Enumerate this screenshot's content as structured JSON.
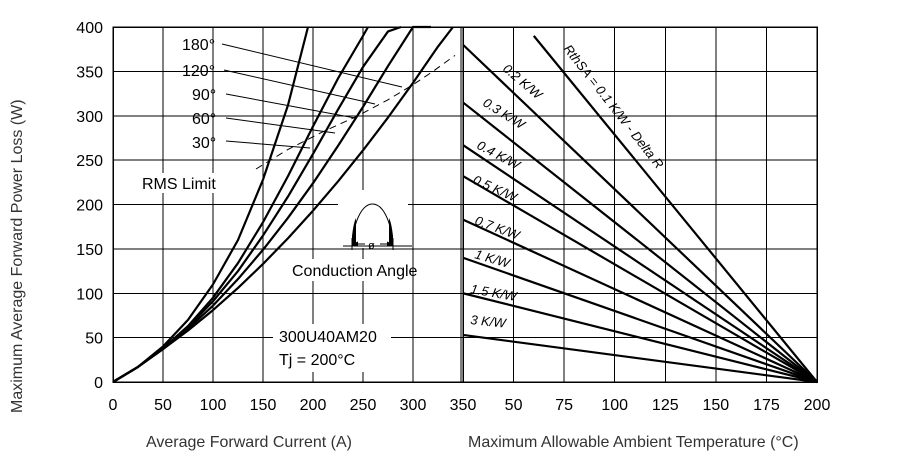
{
  "chart_data": [
    {
      "type": "line",
      "title": "",
      "xlabel": "Average Forward Current (A)",
      "ylabel": "Maximum Average Forward Power Loss (W)",
      "xlim": [
        0,
        350
      ],
      "ylim": [
        0,
        400
      ],
      "xticks": [
        "0",
        "50",
        "100",
        "150",
        "200",
        "250",
        "300"
      ],
      "yticks": [
        "0",
        "50",
        "100",
        "150",
        "200",
        "250",
        "300",
        "350",
        "400"
      ],
      "grid": true,
      "series": [
        {
          "name": "30°",
          "x": [
            0,
            25,
            50,
            75,
            100,
            125,
            150,
            175,
            200,
            225,
            250,
            275,
            300,
            325,
            340
          ],
          "y": [
            0,
            17,
            37,
            58,
            81,
            106,
            133,
            162,
            193,
            226,
            261,
            298,
            337,
            378,
            400
          ]
        },
        {
          "name": "60°",
          "x": [
            0,
            25,
            50,
            75,
            100,
            125,
            150,
            175,
            200,
            225,
            250,
            275,
            300,
            318
          ],
          "y": [
            0,
            17,
            37,
            60,
            86,
            116,
            149,
            185,
            224,
            266,
            310,
            356,
            402,
            400
          ]
        },
        {
          "name": "90°",
          "x": [
            0,
            25,
            50,
            75,
            100,
            125,
            150,
            175,
            200,
            225,
            250,
            275,
            288
          ],
          "y": [
            0,
            17,
            38,
            62,
            91,
            125,
            165,
            209,
            257,
            307,
            355,
            395,
            400
          ]
        },
        {
          "name": "120°",
          "x": [
            0,
            25,
            50,
            75,
            100,
            125,
            150,
            175,
            200,
            225,
            250,
            255
          ],
          "y": [
            0,
            17,
            38,
            63,
            95,
            134,
            180,
            232,
            288,
            342,
            390,
            400
          ]
        },
        {
          "name": "180°",
          "x": [
            0,
            25,
            50,
            75,
            100,
            125,
            150,
            175,
            195
          ],
          "y": [
            0,
            17,
            40,
            70,
            110,
            160,
            228,
            312,
            400
          ]
        }
      ],
      "rms_limit": {
        "label": "RMS Limit",
        "x": [
          143,
          175,
          210,
          245,
          275,
          300,
          320,
          342
        ],
        "y": [
          240,
          262,
          282,
          300,
          318,
          335,
          350,
          368
        ]
      },
      "annotations": [
        "RMS Limit",
        "Conduction Angle",
        "ø",
        "300U40AM20",
        "Tj = 200°C"
      ]
    },
    {
      "type": "line",
      "title": "",
      "xlabel": "Maximum Allowable Ambient Temperature (°C)",
      "ylabel": "",
      "xlim": [
        25,
        200
      ],
      "ylim": [
        0,
        400
      ],
      "xticks": [
        "350",
        "50",
        "75",
        "100",
        "125",
        "150",
        "175",
        "200"
      ],
      "grid": true,
      "series": [
        {
          "name": "RthSA = 0.1 K/W - Delta R",
          "x": [
            60,
            200
          ],
          "y": [
            390,
            0
          ]
        },
        {
          "name": "0.2 K/W",
          "x": [
            25,
            200
          ],
          "y": [
            380,
            0
          ]
        },
        {
          "name": "0.3 K/W",
          "x": [
            25,
            200
          ],
          "y": [
            315,
            0
          ]
        },
        {
          "name": "0.4 K/W",
          "x": [
            25,
            200
          ],
          "y": [
            267,
            0
          ]
        },
        {
          "name": "0.5 K/W",
          "x": [
            25,
            200
          ],
          "y": [
            232,
            0
          ]
        },
        {
          "name": "0.7 K/W",
          "x": [
            25,
            200
          ],
          "y": [
            183,
            0
          ]
        },
        {
          "name": "1 K/W",
          "x": [
            25,
            200
          ],
          "y": [
            140,
            0
          ]
        },
        {
          "name": "1.5 K/W",
          "x": [
            25,
            200
          ],
          "y": [
            100,
            0
          ]
        },
        {
          "name": "3 K/W",
          "x": [
            25,
            200
          ],
          "y": [
            53,
            0
          ]
        }
      ]
    }
  ]
}
